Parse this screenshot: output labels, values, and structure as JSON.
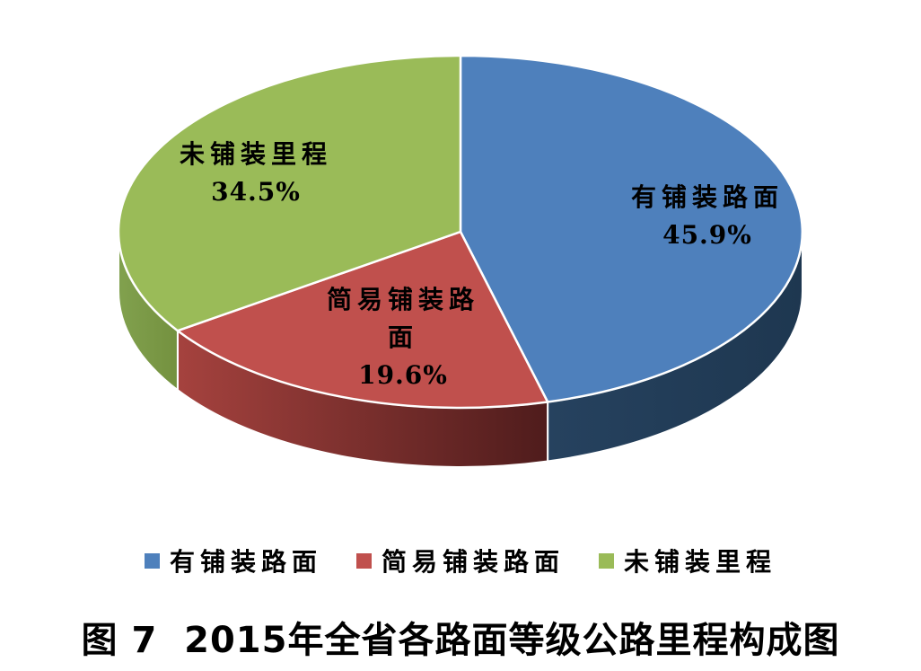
{
  "chart_data": {
    "type": "pie",
    "style": "3d-pie",
    "title": "图 7  2015年全省各路面等级公路里程构成图",
    "start_angle_deg": 0,
    "direction": "clockwise",
    "legend_position": "bottom",
    "data_labels": "name-and-percent",
    "background_color": "#ffffff",
    "separator_color": "#ffffff",
    "slices": [
      {
        "name": "有铺装路面",
        "value": 45.9,
        "pct_label": "45.9%",
        "color": "#4E80BC",
        "side_from": "#26425F",
        "side_to": "#1E3750"
      },
      {
        "name": "简易铺装路面",
        "value": 19.6,
        "pct_label": "19.6%",
        "color": "#C0504D",
        "side_from": "#A5423E",
        "side_to": "#4F1C1C"
      },
      {
        "name": "未铺装里程",
        "value": 34.5,
        "pct_label": "34.5%",
        "color": "#9ABB58",
        "side_from": "#81A14E",
        "side_to": "#74913F"
      }
    ]
  }
}
